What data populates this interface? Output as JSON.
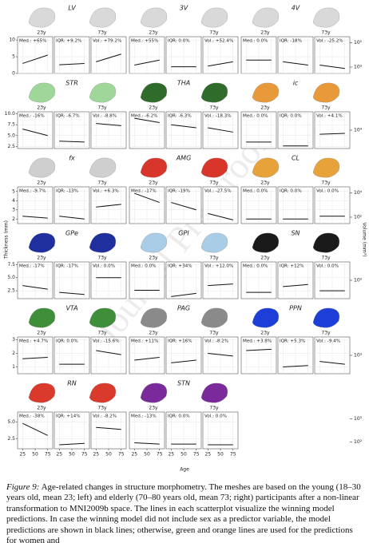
{
  "figure": {
    "xlim": [
      15,
      85
    ],
    "xticks": [
      25,
      50,
      75
    ],
    "x_label": "Age",
    "y_label": "Thickness (mm)",
    "y2_label": "Volume (mm³)",
    "young_label": "23y",
    "old_label": "73y",
    "rows": [
      {
        "ylim": [
          0,
          11
        ],
        "yticks": [
          0,
          5,
          10
        ],
        "y2lim": [
          300,
          300000
        ],
        "y2ticks": [
          {
            "value": 1000,
            "label": "10³"
          },
          {
            "value": 100000,
            "label": "10⁵"
          }
        ],
        "structures": [
          {
            "name": "LV",
            "color": "#d9d9d9",
            "labels": [
              "Med.: +65%",
              "IQR: +9.2%",
              "Vol.: +79.2%"
            ],
            "trends": [
              [
                3.0,
                5.5
              ],
              [
                2.6,
                3.0
              ],
              [
                3.5,
                5.8
              ]
            ]
          },
          {
            "name": "3V",
            "color": "#d9d9d9",
            "labels": [
              "Med.: +55%",
              "IQR: 0.0%",
              "Vol.: +52.4%"
            ],
            "trends": [
              [
                2.5,
                4
              ],
              [
                2,
                2
              ],
              [
                2.2,
                3.5
              ]
            ]
          },
          {
            "name": "4V",
            "color": "#d9d9d9",
            "labels": [
              "Med.: 0.0%",
              "IQR: -18%",
              "Vol.: -25.2%"
            ],
            "trends": [
              [
                4,
                4
              ],
              [
                3.5,
                2.5
              ],
              [
                2.5,
                1.5
              ]
            ]
          }
        ]
      },
      {
        "ylim": [
          2,
          10.5
        ],
        "yticks": [
          {
            "value": 2.5,
            "label": "2.5"
          },
          {
            "value": 5,
            "label": "5.0"
          },
          {
            "value": 7.5,
            "label": "7.5"
          },
          {
            "value": 10,
            "label": "10.0"
          }
        ],
        "y2lim": [
          2000,
          50000
        ],
        "y2ticks": [
          {
            "value": 10000,
            "label": "10⁴"
          }
        ],
        "structures": [
          {
            "name": "STR",
            "color": "#9fd79a",
            "labels": [
              "Med.: -16%",
              "IQR: -6.7%",
              "Vol.: -8.8%"
            ],
            "trends": [
              [
                6.5,
                5
              ],
              [
                3.7,
                3.5
              ],
              [
                7.8,
                7.3
              ]
            ]
          },
          {
            "name": "THA",
            "color": "#2f6b2a",
            "labels": [
              "Med.: -6.2%",
              "IQR: -6.3%",
              "Vol.: -18.3%"
            ],
            "trends": [
              [
                9,
                8
              ],
              [
                7.5,
                6.8
              ],
              [
                6.8,
                5.8
              ]
            ]
          },
          {
            "name": "ic",
            "color": "#e89a3a",
            "labels": [
              "Med.: 0.0%",
              "IQR: 0.0%",
              "Vol.: +4.1%"
            ],
            "trends": [
              [
                3.5,
                3.5
              ],
              [
                2.6,
                2.6
              ],
              [
                5.3,
                5.5
              ]
            ]
          }
        ]
      },
      {
        "ylim": [
          1.5,
          5.5
        ],
        "yticks": [
          2,
          3,
          4,
          5
        ],
        "y2lim": [
          30,
          30000
        ],
        "y2ticks": [
          {
            "value": 100,
            "label": "10²"
          },
          {
            "value": 10000,
            "label": "10⁴"
          }
        ],
        "structures": [
          {
            "name": "fx",
            "color": "#cfcfcf",
            "labels": [
              "Med.: -9.7%",
              "IQR: -13%",
              "Vol.: +6.3%"
            ],
            "trends": [
              [
                2.3,
                2.1
              ],
              [
                2.3,
                2.0
              ],
              [
                3.3,
                3.6
              ]
            ]
          },
          {
            "name": "AMG",
            "color": "#d9362b",
            "labels": [
              "Med.: -17%",
              "IQR: -19%",
              "Vol.: -27.5%"
            ],
            "trends": [
              [
                4.8,
                3.8
              ],
              [
                3.8,
                3.0
              ],
              [
                2.6,
                1.9
              ]
            ]
          },
          {
            "name": "CL",
            "color": "#e8a23a",
            "labels": [
              "Med.: 0.0%",
              "IQR: 0.0%",
              "Vol.: 0.0%"
            ],
            "trends": [
              [
                2.0,
                2.0
              ],
              [
                2.0,
                2.0
              ],
              [
                2.3,
                2.3
              ]
            ]
          }
        ]
      },
      {
        "ylim": [
          1,
          8
        ],
        "yticks": [
          {
            "value": 2.5,
            "label": "2.5"
          },
          {
            "value": 5,
            "label": "5.0"
          },
          {
            "value": 7.5,
            "label": "7.5"
          }
        ],
        "y2lim": [
          200,
          5000
        ],
        "y2ticks": [
          {
            "value": 1000,
            "label": "10³"
          }
        ],
        "structures": [
          {
            "name": "GPe",
            "color": "#1f2f9e",
            "labels": [
              "Med.: -17%",
              "IQR: -17%",
              "Vol.: 0.0%"
            ],
            "trends": [
              [
                3.5,
                2.8
              ],
              [
                2.2,
                1.8
              ],
              [
                5,
                5
              ]
            ]
          },
          {
            "name": "GPI",
            "color": "#a9cde6",
            "labels": [
              "Med.: 0.0%",
              "IQR: +34%",
              "Vol.: +12.0%"
            ],
            "trends": [
              [
                2.6,
                2.6
              ],
              [
                1.4,
                2.0
              ],
              [
                3.5,
                3.8
              ]
            ]
          },
          {
            "name": "SN",
            "color": "#1a1a1a",
            "labels": [
              "Med.: 0.0%",
              "IQR: +12%",
              "Vol.: 0.0%"
            ],
            "trends": [
              [
                2.2,
                2.2
              ],
              [
                3.3,
                3.7
              ],
              [
                2.5,
                2.5
              ]
            ]
          }
        ]
      },
      {
        "ylim": [
          0.5,
          3.2
        ],
        "yticks": [
          1,
          2,
          3
        ],
        "y2lim": [
          200,
          5000
        ],
        "y2ticks": [
          {
            "value": 1000,
            "label": "10³"
          }
        ],
        "structures": [
          {
            "name": "VTA",
            "color": "#3f8f3a",
            "labels": [
              "Med.: +4.7%",
              "IQR: 0.0%",
              "Vol.: -15.6%"
            ],
            "trends": [
              [
                1.6,
                1.7
              ],
              [
                1.2,
                1.2
              ],
              [
                2.2,
                1.9
              ]
            ]
          },
          {
            "name": "PAG",
            "color": "#8a8a8a",
            "labels": [
              "Med.: +11%",
              "IQR: +16%",
              "Vol.: -8.2%"
            ],
            "trends": [
              [
                1.5,
                1.7
              ],
              [
                1.3,
                1.5
              ],
              [
                2.0,
                1.8
              ]
            ]
          },
          {
            "name": "PPN",
            "color": "#1d3fd8",
            "labels": [
              "Med.: +3.8%",
              "IQR: +5.3%",
              "Vol.: -9.4%"
            ],
            "trends": [
              [
                2.2,
                2.3
              ],
              [
                1.0,
                1.1
              ],
              [
                1.4,
                1.2
              ]
            ]
          }
        ]
      },
      {
        "ylim": [
          1,
          6.5
        ],
        "yticks": [
          {
            "value": 2.5,
            "label": "2.5"
          },
          {
            "value": 5,
            "label": "5.0"
          }
        ],
        "y2lim": [
          50,
          2000
        ],
        "y2ticks": [
          {
            "value": 100,
            "label": "10²"
          },
          {
            "value": 1000,
            "label": "10³"
          }
        ],
        "structures": [
          {
            "name": "RN",
            "color": "#d93a2b",
            "labels": [
              "Med.: -38%",
              "IQR: +14%",
              "Vol.: -8.2%"
            ],
            "trends": [
              [
                4.8,
                3.0
              ],
              [
                1.6,
                1.8
              ],
              [
                4.2,
                3.9
              ]
            ]
          },
          {
            "name": "STN",
            "color": "#7a2a9a",
            "labels": [
              "Med.: -13%",
              "IQR: 0.0%",
              "Vol.: 0.0%"
            ],
            "trends": [
              [
                1.9,
                1.7
              ],
              [
                1.7,
                1.7
              ],
              [
                1.6,
                1.6
              ]
            ]
          }
        ]
      }
    ]
  },
  "watermark": "Journal Pre-proof",
  "caption": {
    "label": "Figure 9:",
    "text": "Age-related changes in structure morphometry. The meshes are based on the young (18–30 years old, mean 23; left) and elderly (70–80 years old, mean 73; right) participants after a non-linear transformation to MNI2009b space. The lines in each scatterplot visualize the winning model predictions. In case the winning model did not include sex as a predictor variable, the model predictions are shown in black lines; otherwise, green and orange lines are used for the predictions for women and"
  }
}
